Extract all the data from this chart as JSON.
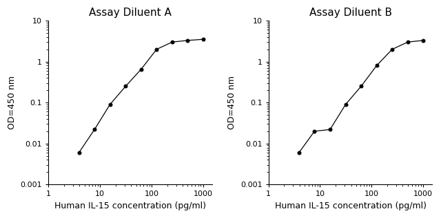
{
  "panel_A": {
    "title": "Assay Diluent A",
    "x": [
      3.9,
      7.8,
      15.6,
      31.25,
      62.5,
      125,
      250,
      500,
      1000
    ],
    "y": [
      0.006,
      0.022,
      0.09,
      0.25,
      0.65,
      2.0,
      3.0,
      3.3,
      3.5
    ],
    "xlabel": "Human IL-15 concentration (pg/ml)",
    "ylabel": "OD=450 nm",
    "xlim": [
      1,
      1500
    ],
    "ylim": [
      0.001,
      10
    ]
  },
  "panel_B": {
    "title": "Assay Diluent B",
    "x": [
      3.9,
      7.8,
      15.6,
      31.25,
      62.5,
      125,
      250,
      500,
      1000
    ],
    "y": [
      0.006,
      0.02,
      0.022,
      0.09,
      0.25,
      0.8,
      2.0,
      3.0,
      3.3
    ],
    "xlabel": "Human IL-15 concentration (pg/ml)",
    "ylabel": "OD=450 nm",
    "xlim": [
      1,
      1500
    ],
    "ylim": [
      0.001,
      10
    ]
  },
  "line_color": "#000000",
  "marker": "o",
  "marker_size": 3.5,
  "marker_facecolor": "#000000",
  "background_color": "#ffffff",
  "title_fontsize": 11,
  "label_fontsize": 9,
  "tick_fontsize": 8,
  "xtick_vals": [
    1,
    10,
    100,
    1000
  ],
  "xtick_labels": [
    "1",
    "10",
    "100",
    "1000"
  ],
  "ytick_vals": [
    0.001,
    0.01,
    0.1,
    1,
    10
  ],
  "ytick_labels": [
    "0.001",
    "0.01",
    "0.1",
    "1",
    "10"
  ]
}
